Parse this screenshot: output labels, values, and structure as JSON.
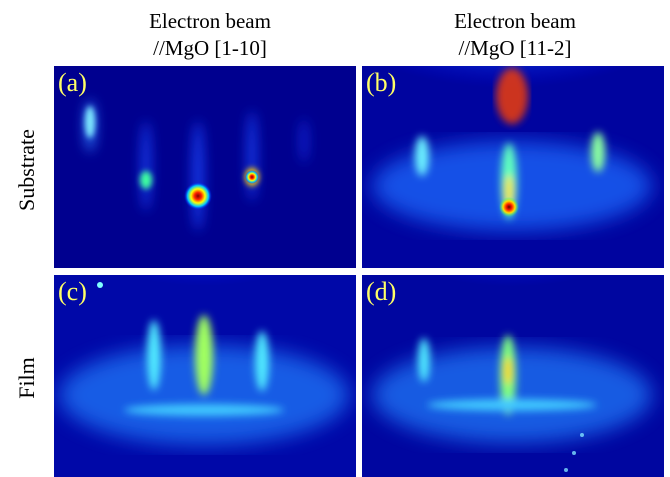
{
  "columns": [
    {
      "line1": "Electron beam",
      "line2": "//MgO [1-10]"
    },
    {
      "line1": "Electron beam",
      "line2": "//MgO [11-2]"
    }
  ],
  "rows": [
    "Substrate",
    "Film"
  ],
  "panels": [
    {
      "label": "(a)"
    },
    {
      "label": "(b)"
    },
    {
      "label": "(c)"
    },
    {
      "label": "(d)"
    }
  ],
  "colors": {
    "background": "#00008f",
    "label": "#ffff66"
  }
}
